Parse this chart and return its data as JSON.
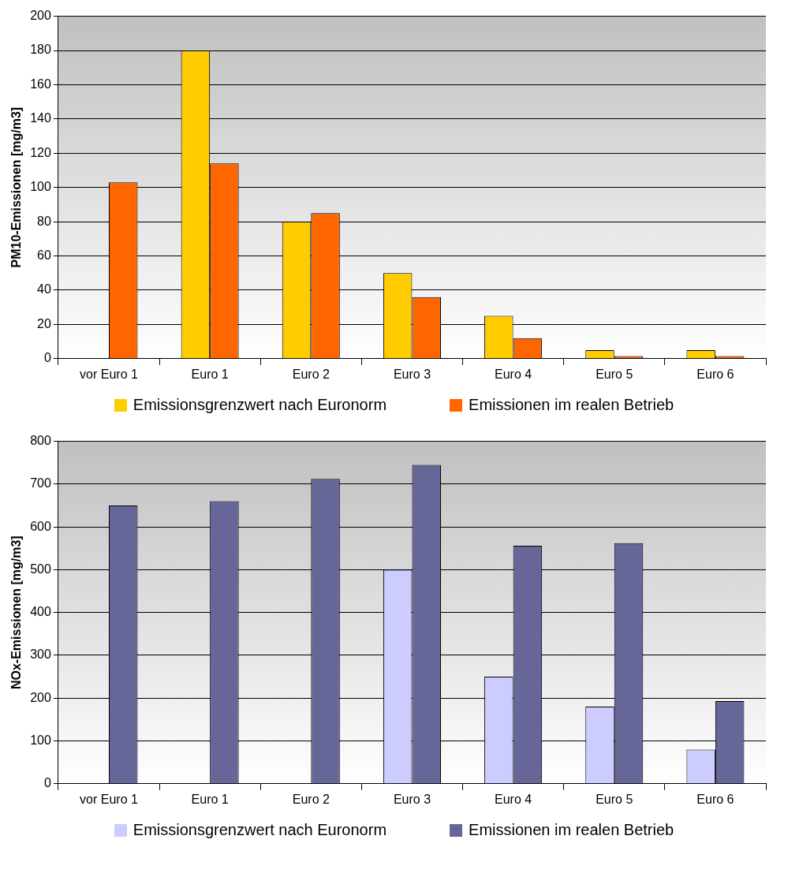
{
  "chart_data": [
    {
      "type": "bar",
      "ylabel": "PM10-Emissionen [mg/m3]",
      "categories": [
        "vor Euro 1",
        "Euro 1",
        "Euro 2",
        "Euro 3",
        "Euro 4",
        "Euro 5",
        "Euro 6"
      ],
      "series": [
        {
          "name": "Emissionsgrenzwert nach Euronorm",
          "color": "#ffcc00",
          "values": [
            null,
            180,
            80,
            50,
            25,
            5,
            5
          ]
        },
        {
          "name": "Emissionen im realen Betrieb",
          "color": "#ff6600",
          "values": [
            103,
            114,
            85,
            36,
            12,
            1.5,
            1.5
          ]
        }
      ],
      "ylim": [
        0,
        200
      ],
      "yticks": [
        0,
        20,
        40,
        60,
        80,
        100,
        120,
        140,
        160,
        180,
        200
      ],
      "grid": "y",
      "legend": "bottom"
    },
    {
      "type": "bar",
      "ylabel": "NOx-Emissionen [mg/m3]",
      "categories": [
        "vor Euro 1",
        "Euro 1",
        "Euro 2",
        "Euro 3",
        "Euro 4",
        "Euro 5",
        "Euro 6"
      ],
      "series": [
        {
          "name": "Emissionsgrenzwert nach Euronorm",
          "color": "#ccccff",
          "values": [
            null,
            null,
            null,
            500,
            250,
            180,
            80
          ]
        },
        {
          "name": "Emissionen im realen Betrieb",
          "color": "#666699",
          "values": [
            650,
            660,
            712,
            745,
            556,
            562,
            193
          ]
        }
      ],
      "ylim": [
        0,
        800
      ],
      "yticks": [
        0,
        100,
        200,
        300,
        400,
        500,
        600,
        700,
        800
      ],
      "grid": "y",
      "legend": "bottom"
    }
  ]
}
